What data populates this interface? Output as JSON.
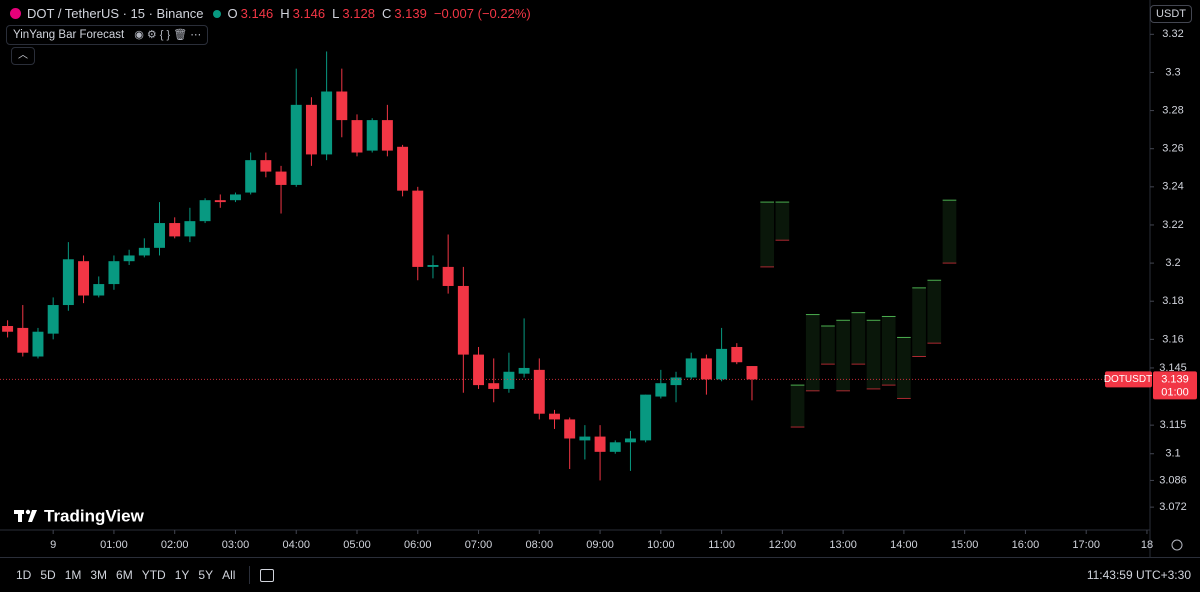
{
  "header": {
    "symbol": "DOT / TetherUS · 15 · Binance",
    "o_label": "O",
    "h_label": "H",
    "l_label": "L",
    "c_label": "C",
    "change": "−0.007 (−0.22%)",
    "indicator": "YinYang Bar Forecast",
    "currency": "USDT"
  },
  "chart_data": {
    "type": "candlestick",
    "open": [
      3.167,
      3.166,
      3.151,
      3.163,
      3.178,
      3.201,
      3.183,
      3.189,
      3.201,
      3.204,
      3.208,
      3.221,
      3.214,
      3.222,
      3.233,
      3.233,
      3.237,
      3.254,
      3.248,
      3.241,
      3.283,
      3.257,
      3.29,
      3.275,
      3.259,
      3.275,
      3.261,
      3.238,
      3.198,
      3.198,
      3.188,
      3.152,
      3.137,
      3.134,
      3.142,
      3.144,
      3.121,
      3.118,
      3.107,
      3.109,
      3.101,
      3.106,
      3.107,
      3.13,
      3.136,
      3.14,
      3.15,
      3.139,
      3.156,
      3.146,
      null,
      null,
      null,
      null,
      null,
      null,
      null,
      null,
      null,
      null,
      null,
      null,
      null
    ],
    "high": [
      3.17,
      3.178,
      3.166,
      3.182,
      3.211,
      3.204,
      3.193,
      3.204,
      3.207,
      3.213,
      3.232,
      3.224,
      3.229,
      3.234,
      3.236,
      3.237,
      3.258,
      3.258,
      3.251,
      3.302,
      3.287,
      3.311,
      3.302,
      3.278,
      3.276,
      3.283,
      3.262,
      3.24,
      3.204,
      3.215,
      3.198,
      3.156,
      3.15,
      3.153,
      3.171,
      3.15,
      3.123,
      3.119,
      3.115,
      3.115,
      3.107,
      3.112,
      3.131,
      3.144,
      3.143,
      3.153,
      3.152,
      3.166,
      3.158,
      3.146,
      null,
      null,
      null,
      null,
      null,
      null,
      null,
      null,
      null,
      null,
      null,
      null,
      null
    ],
    "low": [
      3.161,
      3.151,
      3.15,
      3.16,
      3.175,
      3.179,
      3.182,
      3.186,
      3.199,
      3.203,
      3.204,
      3.213,
      3.211,
      3.221,
      3.229,
      3.232,
      3.236,
      3.245,
      3.226,
      3.24,
      3.251,
      3.254,
      3.266,
      3.256,
      3.258,
      3.256,
      3.235,
      3.191,
      3.192,
      3.184,
      3.132,
      3.134,
      3.127,
      3.132,
      3.14,
      3.118,
      3.113,
      3.092,
      3.097,
      3.086,
      3.1,
      3.091,
      3.106,
      3.129,
      3.127,
      3.139,
      3.131,
      3.138,
      3.147,
      3.128,
      null,
      null,
      null,
      null,
      null,
      null,
      null,
      null,
      null,
      null,
      null,
      null,
      null
    ],
    "close": [
      3.164,
      3.153,
      3.164,
      3.178,
      3.202,
      3.183,
      3.189,
      3.201,
      3.204,
      3.208,
      3.221,
      3.214,
      3.222,
      3.233,
      3.232,
      3.236,
      3.254,
      3.248,
      3.241,
      3.283,
      3.257,
      3.29,
      3.275,
      3.258,
      3.275,
      3.259,
      3.238,
      3.198,
      3.199,
      3.188,
      3.152,
      3.136,
      3.134,
      3.143,
      3.145,
      3.121,
      3.118,
      3.108,
      3.109,
      3.101,
      3.106,
      3.108,
      3.131,
      3.137,
      3.14,
      3.15,
      3.139,
      3.155,
      3.148,
      3.139,
      null,
      null,
      null,
      null,
      null,
      null,
      null,
      null,
      null,
      null,
      null,
      null,
      null
    ],
    "forecast_high": [
      null,
      null,
      null,
      null,
      null,
      null,
      null,
      null,
      null,
      null,
      null,
      null,
      null,
      null,
      null,
      null,
      null,
      null,
      null,
      null,
      null,
      null,
      null,
      null,
      null,
      null,
      null,
      null,
      null,
      null,
      null,
      null,
      null,
      null,
      null,
      null,
      null,
      null,
      null,
      null,
      null,
      null,
      null,
      null,
      null,
      null,
      null,
      null,
      null,
      null,
      3.232,
      3.232,
      3.136,
      3.173,
      3.167,
      3.17,
      3.174,
      3.17,
      3.172,
      3.161,
      3.187,
      3.191,
      3.233
    ],
    "forecast_low": [
      null,
      null,
      null,
      null,
      null,
      null,
      null,
      null,
      null,
      null,
      null,
      null,
      null,
      null,
      null,
      null,
      null,
      null,
      null,
      null,
      null,
      null,
      null,
      null,
      null,
      null,
      null,
      null,
      null,
      null,
      null,
      null,
      null,
      null,
      null,
      null,
      null,
      null,
      null,
      null,
      null,
      null,
      null,
      null,
      null,
      null,
      null,
      null,
      null,
      null,
      3.198,
      3.212,
      3.114,
      3.133,
      3.147,
      3.133,
      3.147,
      3.134,
      3.136,
      3.129,
      3.151,
      3.158,
      3.2
    ],
    "up_color": "#089981",
    "down_color": "#f23645",
    "forecast_color": "#4caf50",
    "xlim": [
      -0.5,
      75.2
    ],
    "xticks": [
      {
        "value": 3,
        "label": "9"
      },
      {
        "value": 7,
        "label": "01:00"
      },
      {
        "value": 11,
        "label": "02:00"
      },
      {
        "value": 15,
        "label": "03:00"
      },
      {
        "value": 19,
        "label": "04:00"
      },
      {
        "value": 23,
        "label": "05:00"
      },
      {
        "value": 27,
        "label": "06:00"
      },
      {
        "value": 31,
        "label": "07:00"
      },
      {
        "value": 35,
        "label": "08:00"
      },
      {
        "value": 39,
        "label": "09:00"
      },
      {
        "value": 43,
        "label": "10:00"
      },
      {
        "value": 47,
        "label": "11:00"
      },
      {
        "value": 51,
        "label": "12:00"
      },
      {
        "value": 55,
        "label": "13:00"
      },
      {
        "value": 59,
        "label": "14:00"
      },
      {
        "value": 63,
        "label": "15:00"
      },
      {
        "value": 67,
        "label": "16:00"
      },
      {
        "value": 71,
        "label": "17:00"
      },
      {
        "value": 75,
        "label": "18"
      }
    ],
    "ylim": [
      3.06,
      3.338
    ],
    "yticks": [
      3.072,
      3.086,
      3.1,
      3.115,
      3.145,
      3.16,
      3.18,
      3.2,
      3.22,
      3.24,
      3.26,
      3.28,
      3.3,
      3.32
    ],
    "last_price_label": "DOTUSDT",
    "countdown": "01:00",
    "watermark": "TradingView"
  },
  "toolbar": {
    "ranges": [
      "1D",
      "5D",
      "1M",
      "3M",
      "6M",
      "YTD",
      "1Y",
      "5Y",
      "All"
    ],
    "clock": "11:43:59 UTC+3:30"
  }
}
